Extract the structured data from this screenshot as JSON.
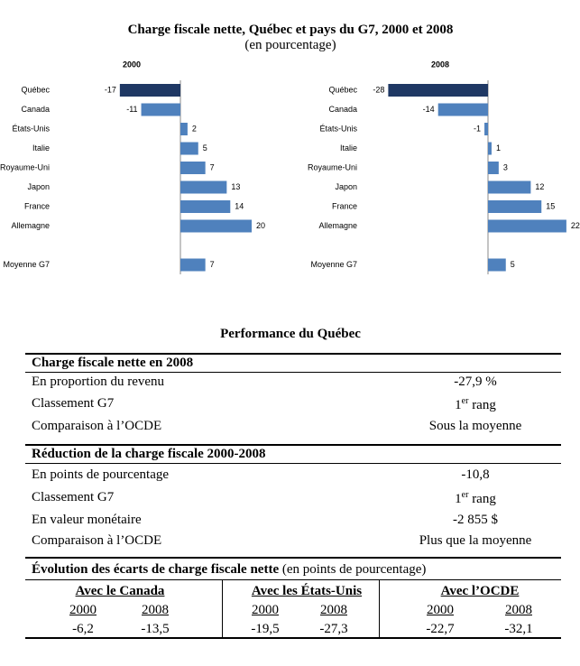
{
  "title": "Charge fiscale nette, Québec et pays du G7, 2000 et 2008",
  "subtitle": "(en pourcentage)",
  "chart_data": [
    {
      "type": "bar",
      "orientation": "horizontal",
      "title": "2000",
      "categories": [
        "Québec",
        "Canada",
        "États-Unis",
        "Italie",
        "Royaume-Uni",
        "Japon",
        "France",
        "Allemagne",
        null,
        "Moyenne G7"
      ],
      "values": [
        -17,
        -11,
        2,
        5,
        7,
        13,
        14,
        20,
        null,
        7
      ],
      "colors": [
        "#1f3864",
        "#4f81bd",
        "#4f81bd",
        "#4f81bd",
        "#4f81bd",
        "#4f81bd",
        "#4f81bd",
        "#4f81bd",
        null,
        "#4f81bd"
      ]
    },
    {
      "type": "bar",
      "orientation": "horizontal",
      "title": "2008",
      "categories": [
        "Québec",
        "Canada",
        "États-Unis",
        "Italie",
        "Royaume-Uni",
        "Japon",
        "France",
        "Allemagne",
        null,
        "Moyenne G7"
      ],
      "values": [
        -28,
        -14,
        -1,
        1,
        3,
        12,
        15,
        22,
        null,
        5
      ],
      "colors": [
        "#1f3864",
        "#4f81bd",
        "#4f81bd",
        "#4f81bd",
        "#4f81bd",
        "#4f81bd",
        "#4f81bd",
        "#4f81bd",
        null,
        "#4f81bd"
      ]
    }
  ],
  "performance": {
    "title": "Performance du Québec",
    "sections": [
      {
        "heading": "Charge fiscale nette en 2008",
        "rows": [
          {
            "label": "En proportion du revenu",
            "value": "-27,9 %"
          },
          {
            "label": "Classement G7",
            "rank": {
              "number": "1",
              "suffix": "er",
              "word": "rang"
            }
          },
          {
            "label": "Comparaison à l’OCDE",
            "value": "Sous la moyenne"
          }
        ]
      },
      {
        "heading": "Réduction de la charge fiscale 2000-2008",
        "rows": [
          {
            "label": "En points de pourcentage",
            "value": "-10,8"
          },
          {
            "label": "Classement G7",
            "rank": {
              "number": "1",
              "suffix": "er",
              "word": "rang"
            }
          },
          {
            "label": "En valeur monétaire",
            "value": "-2 855 $"
          },
          {
            "label": "Comparaison à l’OCDE",
            "value": "Plus que la moyenne"
          }
        ]
      }
    ],
    "evolution": {
      "heading": "Évolution des écarts de charge fiscale nette",
      "note": "(en points de pourcentage)",
      "groups": [
        {
          "name": "Avec le Canada",
          "years": [
            "2000",
            "2008"
          ],
          "values": [
            "-6,2",
            "-13,5"
          ]
        },
        {
          "name": "Avec les États-Unis",
          "years": [
            "2000",
            "2008"
          ],
          "values": [
            "-19,5",
            "-27,3"
          ]
        },
        {
          "name": "Avec l’OCDE",
          "years": [
            "2000",
            "2008"
          ],
          "values": [
            "-22,7",
            "-32,1"
          ]
        }
      ]
    }
  }
}
